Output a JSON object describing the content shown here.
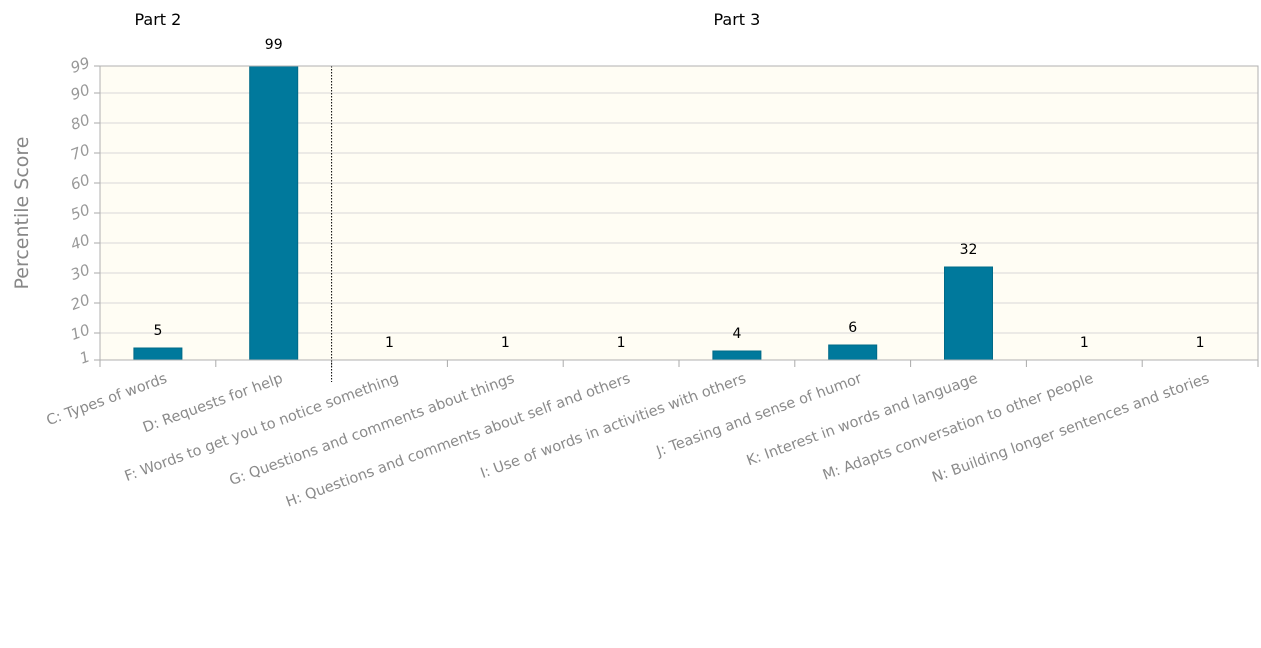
{
  "parts": [
    {
      "label": "Part 2",
      "category_index": 0
    },
    {
      "label": "Part 3",
      "category_index": 5
    }
  ],
  "chart_data": {
    "type": "bar",
    "title": "",
    "xlabel": "",
    "ylabel": "Percentile Score",
    "ylim": [
      1,
      99
    ],
    "yticks": [
      1,
      10,
      20,
      30,
      40,
      50,
      60,
      70,
      80,
      90,
      99
    ],
    "grid": true,
    "divider_after_index": 1,
    "colors": {
      "bar": "#00799c",
      "plot_bg": "#fffdf4",
      "grid": "#d8d8d8"
    },
    "categories": [
      "C: Types of words",
      "D: Requests for help",
      "F: Words to get you to notice something",
      "G: Questions and comments about things",
      "H: Questions and comments about self and others",
      "I: Use of words in activities with others",
      "J: Teasing and sense of humor",
      "K: Interest in words and language",
      "M: Adapts conversation to other people",
      "N: Building longer sentences and stories"
    ],
    "values": [
      5,
      99,
      1,
      1,
      1,
      4,
      6,
      32,
      1,
      1
    ]
  }
}
